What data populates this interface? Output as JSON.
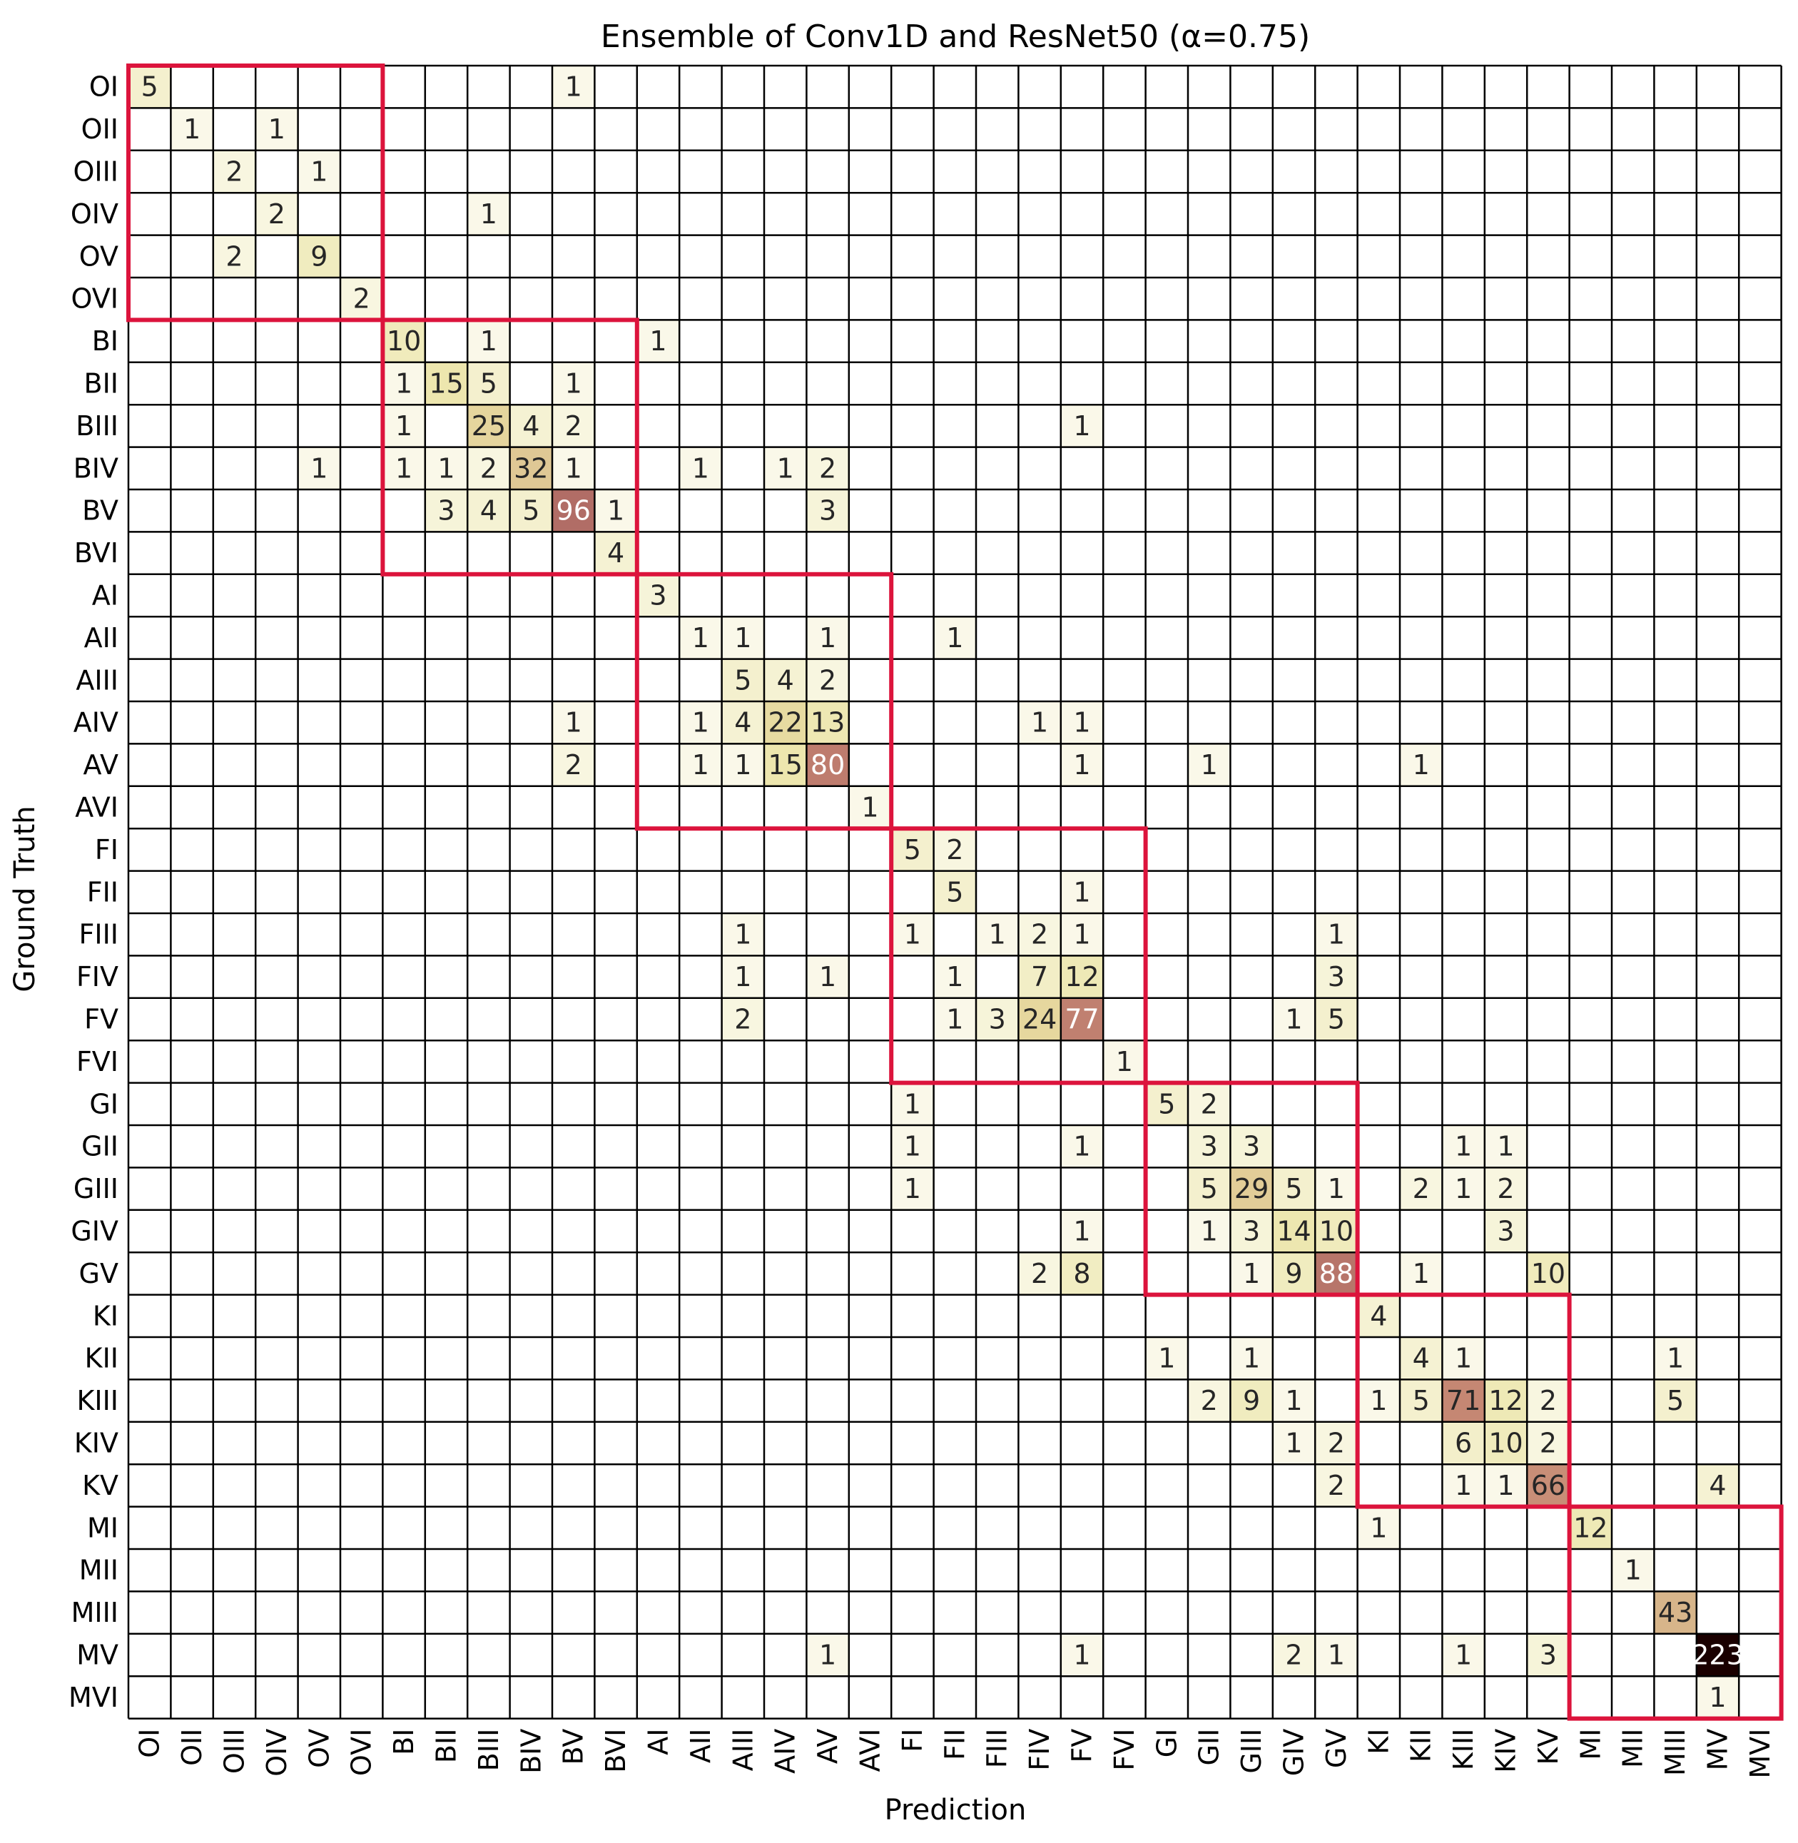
{
  "chart_data": {
    "type": "heatmap",
    "title": "Ensemble of Conv1D and ResNet50 (α=0.75)",
    "xlabel": "Prediction",
    "ylabel": "Ground Truth",
    "labels": [
      "OI",
      "OII",
      "OIII",
      "OIV",
      "OV",
      "OVI",
      "BI",
      "BII",
      "BIII",
      "BIV",
      "BV",
      "BVI",
      "AI",
      "AII",
      "AIII",
      "AIV",
      "AV",
      "AVI",
      "FI",
      "FII",
      "FIII",
      "FIV",
      "FV",
      "FVI",
      "GI",
      "GII",
      "GIII",
      "GIV",
      "GV",
      "KI",
      "KII",
      "KIII",
      "KIV",
      "KV",
      "MI",
      "MII",
      "MIII",
      "MV",
      "MVI"
    ],
    "value_range": [
      0,
      223
    ],
    "colormap": [
      "#ffffff",
      "#f4f1d0",
      "#ebe4a6",
      "#d9b98c",
      "#c48472",
      "#a45d5d",
      "#6e3434",
      "#1a0000"
    ],
    "highlight_color": "#dc143c",
    "highlight_groups": [
      [
        0,
        5
      ],
      [
        6,
        11
      ],
      [
        12,
        17
      ],
      [
        18,
        23
      ],
      [
        24,
        28
      ],
      [
        29,
        33
      ],
      [
        34,
        38
      ]
    ],
    "cells": [
      [
        0,
        0,
        5
      ],
      [
        0,
        10,
        1
      ],
      [
        1,
        1,
        1
      ],
      [
        1,
        3,
        1
      ],
      [
        2,
        2,
        2
      ],
      [
        2,
        4,
        1
      ],
      [
        3,
        3,
        2
      ],
      [
        3,
        8,
        1
      ],
      [
        4,
        2,
        2
      ],
      [
        4,
        4,
        9
      ],
      [
        5,
        5,
        2
      ],
      [
        6,
        6,
        10
      ],
      [
        6,
        8,
        1
      ],
      [
        6,
        12,
        1
      ],
      [
        7,
        6,
        1
      ],
      [
        7,
        7,
        15
      ],
      [
        7,
        8,
        5
      ],
      [
        7,
        10,
        1
      ],
      [
        8,
        6,
        1
      ],
      [
        8,
        8,
        25
      ],
      [
        8,
        9,
        4
      ],
      [
        8,
        10,
        2
      ],
      [
        8,
        22,
        1
      ],
      [
        9,
        4,
        1
      ],
      [
        9,
        6,
        1
      ],
      [
        9,
        7,
        1
      ],
      [
        9,
        8,
        2
      ],
      [
        9,
        9,
        32
      ],
      [
        9,
        10,
        1
      ],
      [
        9,
        13,
        1
      ],
      [
        9,
        15,
        1
      ],
      [
        9,
        16,
        2
      ],
      [
        10,
        7,
        3
      ],
      [
        10,
        8,
        4
      ],
      [
        10,
        9,
        5
      ],
      [
        10,
        10,
        96
      ],
      [
        10,
        11,
        1
      ],
      [
        10,
        16,
        3
      ],
      [
        11,
        11,
        4
      ],
      [
        12,
        12,
        3
      ],
      [
        13,
        13,
        1
      ],
      [
        13,
        14,
        1
      ],
      [
        13,
        16,
        1
      ],
      [
        13,
        19,
        1
      ],
      [
        14,
        14,
        5
      ],
      [
        14,
        15,
        4
      ],
      [
        14,
        16,
        2
      ],
      [
        15,
        10,
        1
      ],
      [
        15,
        13,
        1
      ],
      [
        15,
        14,
        4
      ],
      [
        15,
        15,
        22
      ],
      [
        15,
        16,
        13
      ],
      [
        15,
        21,
        1
      ],
      [
        15,
        22,
        1
      ],
      [
        16,
        10,
        2
      ],
      [
        16,
        13,
        1
      ],
      [
        16,
        14,
        1
      ],
      [
        16,
        15,
        15
      ],
      [
        16,
        16,
        80
      ],
      [
        16,
        22,
        1
      ],
      [
        16,
        25,
        1
      ],
      [
        16,
        30,
        1
      ],
      [
        17,
        17,
        1
      ],
      [
        18,
        18,
        5
      ],
      [
        18,
        19,
        2
      ],
      [
        19,
        19,
        5
      ],
      [
        19,
        22,
        1
      ],
      [
        20,
        14,
        1
      ],
      [
        20,
        18,
        1
      ],
      [
        20,
        20,
        1
      ],
      [
        20,
        21,
        2
      ],
      [
        20,
        22,
        1
      ],
      [
        20,
        28,
        1
      ],
      [
        21,
        14,
        1
      ],
      [
        21,
        16,
        1
      ],
      [
        21,
        19,
        1
      ],
      [
        21,
        21,
        7
      ],
      [
        21,
        22,
        12
      ],
      [
        21,
        28,
        3
      ],
      [
        22,
        14,
        2
      ],
      [
        22,
        19,
        1
      ],
      [
        22,
        20,
        3
      ],
      [
        22,
        21,
        24
      ],
      [
        22,
        22,
        77
      ],
      [
        22,
        27,
        1
      ],
      [
        22,
        28,
        5
      ],
      [
        23,
        23,
        1
      ],
      [
        24,
        18,
        1
      ],
      [
        24,
        24,
        5
      ],
      [
        24,
        25,
        2
      ],
      [
        25,
        18,
        1
      ],
      [
        25,
        22,
        1
      ],
      [
        25,
        25,
        3
      ],
      [
        25,
        26,
        3
      ],
      [
        25,
        31,
        1
      ],
      [
        25,
        32,
        1
      ],
      [
        26,
        18,
        1
      ],
      [
        26,
        25,
        5
      ],
      [
        26,
        26,
        29
      ],
      [
        26,
        27,
        5
      ],
      [
        26,
        28,
        1
      ],
      [
        26,
        30,
        2
      ],
      [
        26,
        31,
        1
      ],
      [
        26,
        32,
        2
      ],
      [
        27,
        22,
        1
      ],
      [
        27,
        25,
        1
      ],
      [
        27,
        26,
        3
      ],
      [
        27,
        27,
        14
      ],
      [
        27,
        28,
        10
      ],
      [
        27,
        32,
        3
      ],
      [
        28,
        21,
        2
      ],
      [
        28,
        22,
        8
      ],
      [
        28,
        26,
        1
      ],
      [
        28,
        27,
        9
      ],
      [
        28,
        28,
        88
      ],
      [
        28,
        30,
        1
      ],
      [
        28,
        33,
        10
      ],
      [
        29,
        29,
        4
      ],
      [
        30,
        24,
        1
      ],
      [
        30,
        26,
        1
      ],
      [
        30,
        30,
        4
      ],
      [
        30,
        31,
        1
      ],
      [
        30,
        36,
        1
      ],
      [
        31,
        25,
        2
      ],
      [
        31,
        26,
        9
      ],
      [
        31,
        27,
        1
      ],
      [
        31,
        29,
        1
      ],
      [
        31,
        30,
        5
      ],
      [
        31,
        31,
        71
      ],
      [
        31,
        32,
        12
      ],
      [
        31,
        33,
        2
      ],
      [
        31,
        36,
        5
      ],
      [
        32,
        27,
        1
      ],
      [
        32,
        28,
        2
      ],
      [
        32,
        31,
        6
      ],
      [
        32,
        32,
        10
      ],
      [
        32,
        33,
        2
      ],
      [
        33,
        28,
        2
      ],
      [
        33,
        31,
        1
      ],
      [
        33,
        32,
        1
      ],
      [
        33,
        33,
        66
      ],
      [
        33,
        37,
        4
      ],
      [
        34,
        29,
        1
      ],
      [
        34,
        34,
        12
      ],
      [
        35,
        35,
        1
      ],
      [
        36,
        36,
        43
      ],
      [
        37,
        16,
        1
      ],
      [
        37,
        22,
        1
      ],
      [
        37,
        27,
        2
      ],
      [
        37,
        28,
        1
      ],
      [
        37,
        31,
        1
      ],
      [
        37,
        33,
        3
      ],
      [
        37,
        37,
        223
      ],
      [
        38,
        37,
        1
      ]
    ]
  }
}
